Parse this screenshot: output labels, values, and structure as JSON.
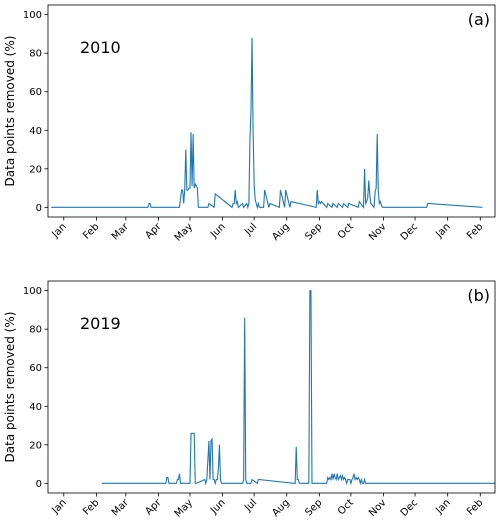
{
  "chart_data": [
    {
      "type": "line",
      "panel_label": "(a)",
      "annotation": "2010",
      "ylabel": "Data points removed (%)",
      "xlabel": "",
      "ylim": [
        -5,
        105
      ],
      "xlim": [
        -15,
        410
      ],
      "yticks": [
        0,
        20,
        40,
        60,
        80,
        100
      ],
      "xticks": [
        "Jan",
        "Feb",
        "Mar",
        "Apr",
        "May",
        "Jun",
        "Jul",
        "Aug",
        "Sep",
        "Oct",
        "Nov",
        "Dec",
        "Jan",
        "Feb"
      ],
      "xtick_days": [
        0,
        31,
        59,
        90,
        120,
        151,
        181,
        212,
        243,
        273,
        304,
        334,
        365,
        396
      ],
      "grid": false,
      "color": "#1f77b4",
      "series": [
        {
          "x": [
            -12,
            80,
            81,
            82,
            83,
            110,
            112,
            113,
            114,
            115,
            116,
            117,
            118,
            119,
            120,
            121,
            122,
            123,
            124,
            125,
            126,
            127,
            128,
            137,
            138,
            143,
            144,
            160,
            161,
            162,
            163,
            164,
            165,
            166,
            170,
            171,
            174,
            175,
            176,
            177,
            178,
            179,
            180,
            181,
            182,
            183,
            184,
            185,
            186,
            190,
            191,
            195,
            196,
            205,
            206,
            210,
            211,
            215,
            216,
            240,
            241,
            242,
            243,
            244,
            245,
            250,
            251,
            255,
            256,
            260,
            261,
            265,
            266,
            270,
            271,
            280,
            281,
            285,
            286,
            287,
            288,
            289,
            290,
            291,
            292,
            295,
            296,
            297,
            298,
            299,
            300,
            301,
            302,
            303,
            345,
            346,
            398
          ],
          "y": [
            0,
            0,
            2,
            2,
            0,
            0,
            9,
            9,
            2,
            9,
            30,
            9,
            9,
            10,
            10,
            39,
            11,
            38,
            10,
            12,
            11,
            10,
            0,
            0,
            2,
            0,
            7,
            0,
            2,
            2,
            9,
            2,
            3,
            0,
            2,
            0,
            2,
            0,
            2,
            35,
            50,
            88,
            40,
            12,
            4,
            2,
            0,
            2,
            0,
            0,
            9,
            0,
            2,
            0,
            9,
            0,
            9,
            0,
            3,
            0,
            9,
            2,
            3,
            2,
            3,
            0,
            2,
            0,
            2,
            0,
            2,
            0,
            2,
            0,
            2,
            0,
            3,
            0,
            20,
            2,
            3,
            5,
            14,
            6,
            2,
            0,
            8,
            10,
            38,
            9,
            2,
            3,
            1,
            0,
            0,
            2,
            0
          ]
        }
      ]
    },
    {
      "type": "line",
      "panel_label": "(b)",
      "annotation": "2019",
      "ylabel": "Data points removed (%)",
      "xlabel": "",
      "ylim": [
        -5,
        105
      ],
      "xlim": [
        -15,
        410
      ],
      "yticks": [
        0,
        20,
        40,
        60,
        80,
        100
      ],
      "xticks": [
        "Jan",
        "Feb",
        "Mar",
        "Apr",
        "May",
        "Jun",
        "Jul",
        "Aug",
        "Sep",
        "Oct",
        "Nov",
        "Dec",
        "Jan",
        "Feb"
      ],
      "xtick_days": [
        0,
        31,
        59,
        90,
        120,
        151,
        181,
        212,
        243,
        273,
        304,
        334,
        365,
        396
      ],
      "grid": false,
      "color": "#1f77b4",
      "series": [
        {
          "x": [
            36,
            97,
            98,
            99,
            100,
            107,
            108,
            109,
            110,
            111,
            112,
            120,
            121,
            122,
            123,
            124,
            125,
            126,
            134,
            135,
            136,
            138,
            139,
            140,
            141,
            142,
            143,
            144,
            145,
            146,
            147,
            148,
            149,
            150,
            151,
            170,
            171,
            172,
            173,
            174,
            178,
            179,
            184,
            185,
            220,
            221,
            222,
            223,
            224,
            233,
            234,
            235,
            236,
            250,
            251,
            252,
            253,
            254,
            255,
            256,
            257,
            258,
            259,
            260,
            261,
            262,
            263,
            264,
            265,
            266,
            267,
            268,
            269,
            270,
            272,
            273,
            274,
            275,
            276,
            277,
            278,
            279,
            280,
            281,
            282,
            283,
            284,
            285,
            286,
            287,
            288,
            410
          ],
          "y": [
            0,
            0,
            3,
            3,
            0,
            0,
            2,
            2,
            5,
            0,
            0,
            0,
            26,
            26,
            26,
            26,
            0,
            0,
            2,
            0,
            2,
            22,
            2,
            22,
            23,
            2,
            2,
            0,
            2,
            2,
            8,
            20,
            2,
            0,
            0,
            0,
            2,
            86,
            2,
            0,
            0,
            2,
            0,
            2,
            0,
            19,
            2,
            2,
            0,
            0,
            100,
            100,
            0,
            0,
            3,
            2,
            3,
            2,
            5,
            2,
            5,
            3,
            2,
            5,
            2,
            3,
            4,
            2,
            4,
            2,
            3,
            2,
            0,
            2,
            2,
            0,
            2,
            3,
            5,
            2,
            3,
            2,
            3,
            2,
            0,
            2,
            0,
            0,
            2,
            0,
            0,
            0
          ]
        }
      ]
    }
  ]
}
